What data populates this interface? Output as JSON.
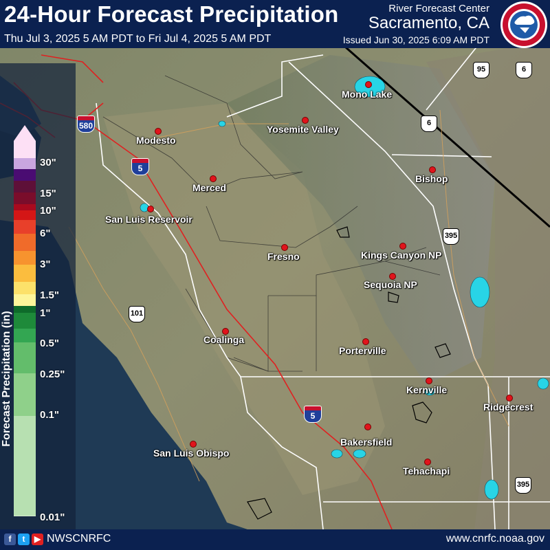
{
  "header": {
    "title": "24-Hour Forecast Precipitation",
    "date_range": "Thu Jul 3, 2025 5 AM PDT to Fri Jul 4, 2025 5 AM PDT",
    "agency": "River Forecast Center",
    "office": "Sacramento, CA",
    "issued": "Issued Jun 30, 2025 6:09 AM PDT",
    "logo_icon": "nws-logo-icon",
    "logo_text": "NATIONAL WEATHER SERVICE"
  },
  "legend": {
    "title": "Forecast Precipitation (in)",
    "labels": [
      "30\"",
      "15\"",
      "10\"",
      "6\"",
      "3\"",
      "1.5\"",
      "1\"",
      "0.5\"",
      "0.25\"",
      "0.1\"",
      "0.01\""
    ],
    "colors": [
      "#fde0f5",
      "#c9a6e0",
      "#4a0c72",
      "#5e1038",
      "#7a0d2b",
      "#a80a1e",
      "#d41616",
      "#e8402a",
      "#f06b2a",
      "#f7932e",
      "#fbbd3e",
      "#fce16a",
      "#fdf59a",
      "#0e6b2a",
      "#1e8a3a",
      "#33a652",
      "#63bd6b",
      "#8fd08a",
      "#b7e0b1",
      "#d7eecf"
    ]
  },
  "cities": [
    "Modesto",
    "Merced",
    "San Luis Reservoir",
    "Fresno",
    "Coalinga",
    "Yosemite Valley",
    "Mono Lake",
    "Bishop",
    "Kings Canyon NP",
    "Sequoia NP",
    "Porterville",
    "Kernville",
    "Ridgecrest",
    "Bakersfield",
    "Tehachapi",
    "San Luis Obispo"
  ],
  "highways": {
    "interstates": [
      "580",
      "5",
      "5"
    ],
    "us_routes": [
      "95",
      "6",
      "6",
      "395",
      "101",
      "395"
    ]
  },
  "footer": {
    "social_icons": [
      "facebook-icon",
      "twitter-icon",
      "youtube-icon"
    ],
    "handle": "NWSCNRFC",
    "website": "www.cnrfc.noaa.gov"
  },
  "colors": {
    "header_bg": "#0b2150",
    "ocean": "#1f3a55",
    "city_dot": "#e0141c",
    "highway": "#e02020",
    "water": "#28d4e6"
  }
}
